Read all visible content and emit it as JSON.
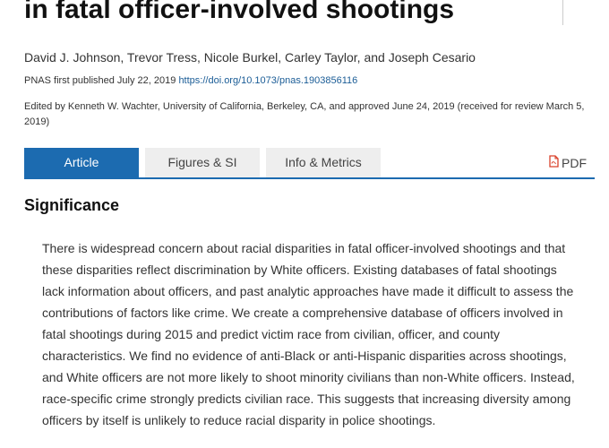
{
  "article": {
    "title": "in fatal officer-involved shootings",
    "authors": "David J. Johnson, Trevor Tress, Nicole Burkel, Carley Taylor, and Joseph Cesario",
    "pub_prefix": "PNAS first published July 22, 2019",
    "doi": "https://doi.org/10.1073/pnas.1903856116",
    "edited_by": "Edited by Kenneth W. Wachter, University of California, Berkeley, CA, and approved June 24, 2019 (received for review March 5, 2019)"
  },
  "tabs": {
    "article": "Article",
    "figures": "Figures & SI",
    "info": "Info & Metrics",
    "pdf": "PDF"
  },
  "colors": {
    "accent": "#1c6bb0",
    "pdf_icon": "#d9412b",
    "link": "#1a5c96"
  },
  "icons": {
    "pdf": "pdf-file-icon"
  },
  "significance": {
    "heading": "Significance",
    "body": "There is widespread concern about racial disparities in fatal officer-involved shootings and that these disparities reflect discrimination by White officers. Existing databases of fatal shootings lack information about officers, and past analytic approaches have made it difficult to assess the contributions of factors like crime. We create a comprehensive database of officers involved in fatal shootings during 2015 and predict victim race from civilian, officer, and county characteristics. We find no evidence of anti-Black or anti-Hispanic disparities across shootings, and White officers are not more likely to shoot minority civilians than non-White officers. Instead, race-specific crime strongly predicts civilian race. This suggests that increasing diversity among officers by itself is unlikely to reduce racial disparity in police shootings."
  }
}
